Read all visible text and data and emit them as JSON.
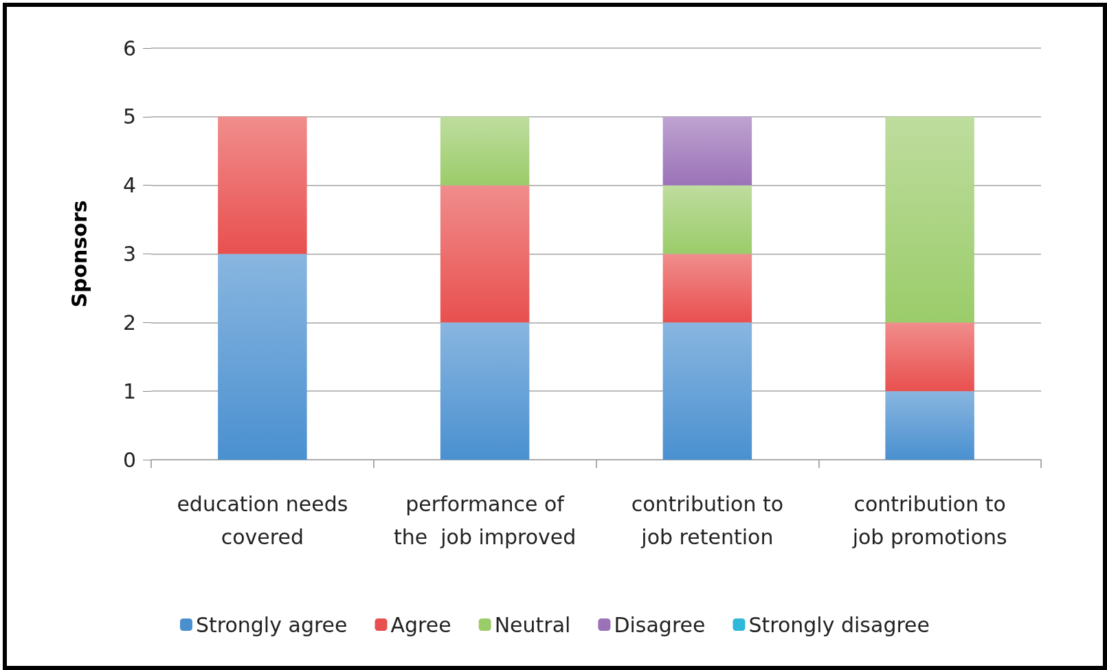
{
  "chart_data": {
    "type": "bar",
    "stacked": true,
    "ylabel": "Sponsors",
    "categories": [
      "education needs\ncovered",
      "performance of\nthe  job improved",
      "contribution to\njob retention",
      "contribution to\njob promotions"
    ],
    "series": [
      {
        "name": "Strongly agree",
        "color": "#4a90d0",
        "values": [
          3,
          2,
          2,
          1
        ]
      },
      {
        "name": "Agree",
        "color": "#e8504f",
        "values": [
          2,
          2,
          1,
          1
        ]
      },
      {
        "name": "Neutral",
        "color": "#9bcc6a",
        "values": [
          0,
          1,
          1,
          3
        ]
      },
      {
        "name": "Disagree",
        "color": "#9b72b8",
        "values": [
          0,
          0,
          1,
          0
        ]
      },
      {
        "name": "Strongly disagree",
        "color": "#2fb8d8",
        "values": [
          0,
          0,
          0,
          0
        ]
      }
    ],
    "ylim": [
      0,
      6
    ],
    "yticks": [
      0,
      1,
      2,
      3,
      4,
      5,
      6
    ],
    "grid": "y",
    "legend": "bottom"
  }
}
